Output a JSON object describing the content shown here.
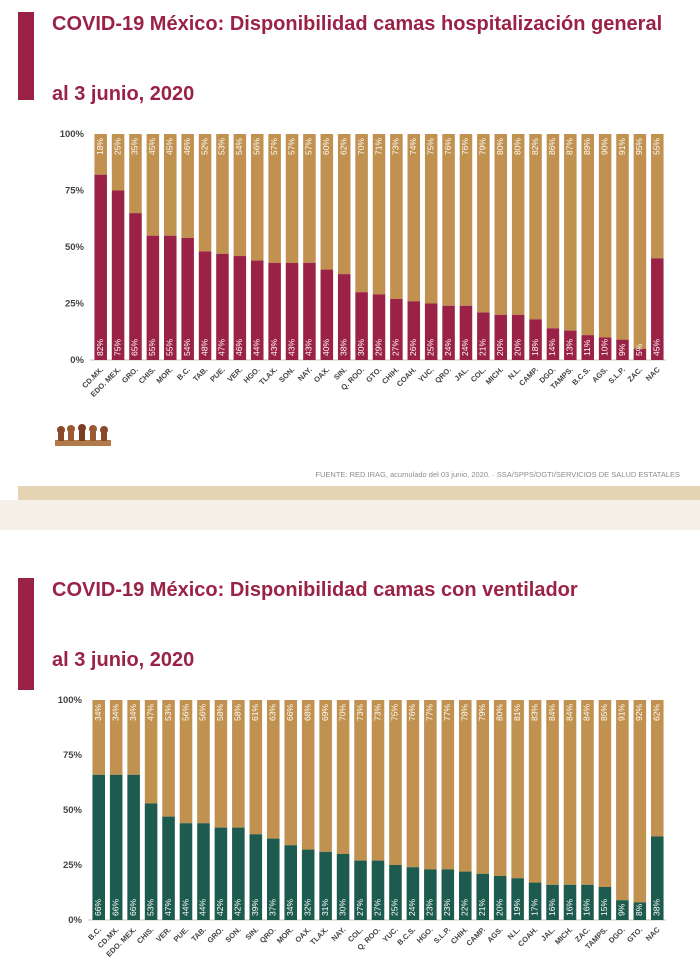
{
  "colors": {
    "accent": "#9b2247",
    "available": "#c0914f",
    "occupied_hosp": "#9b2247",
    "occupied_vent": "#1e5b4f",
    "source_text": "#8c8c8c"
  },
  "panel1": {
    "title": "COVID-19 México: Disponibilidad camas hospitalización general",
    "subtitle": "al 3 junio, 2020",
    "source": "FUENTE: RED IRAG, acumulado del 03 junio, 2020.  ·  SSA/SPPS/DGTI/SERVICIOS DE SALUD ESTATALES"
  },
  "panel2": {
    "title": "COVID-19 México: Disponibilidad camas con ventilador",
    "subtitle": "al 3 junio, 2020"
  },
  "chart_data": [
    {
      "type": "bar",
      "stacked": true,
      "ylim": [
        0,
        100
      ],
      "yticks": [
        "0%",
        "25%",
        "50%",
        "75%",
        "100%"
      ],
      "grid": false,
      "legend": "none",
      "categories": [
        "CD.MX.",
        "EDO. MEX.",
        "GRO.",
        "CHIS.",
        "MOR.",
        "B.C.",
        "TAB.",
        "PUE.",
        "VER.",
        "HGO.",
        "TLAX.",
        "SON.",
        "NAY.",
        "OAX.",
        "SIN.",
        "Q. ROO.",
        "GTO.",
        "CHIH.",
        "COAH.",
        "YUC.",
        "QRO.",
        "JAL.",
        "COL.",
        "MICH.",
        "N.L.",
        "CAMP.",
        "DGO.",
        "TAMPS.",
        "B.C.S.",
        "AGS.",
        "S.L.P.",
        "ZAC.",
        "NAC"
      ],
      "series": [
        {
          "values": [
            82,
            75,
            65,
            55,
            55,
            54,
            48,
            47,
            46,
            44,
            43,
            43,
            43,
            40,
            38,
            30,
            29,
            27,
            26,
            25,
            24,
            24,
            21,
            20,
            20,
            18,
            14,
            13,
            11,
            10,
            9,
            5,
            45
          ],
          "labels": [
            "82%",
            "75%",
            "65%",
            "55%",
            "55%",
            "54%",
            "48%",
            "47%",
            "46%",
            "44%",
            "43%",
            "43%",
            "43%",
            "40%",
            "38%",
            "30%",
            "29%",
            "27%",
            "26%",
            "25%",
            "24%",
            "24%",
            "21%",
            "20%",
            "20%",
            "18%",
            "14%",
            "13%",
            "11%",
            "10%",
            "9%",
            "5%",
            "45%"
          ]
        },
        {
          "values": [
            18,
            25,
            35,
            45,
            45,
            46,
            52,
            53,
            54,
            56,
            57,
            57,
            57,
            60,
            62,
            70,
            71,
            73,
            74,
            75,
            76,
            76,
            79,
            80,
            80,
            82,
            86,
            87,
            89,
            90,
            91,
            95,
            55
          ],
          "labels": [
            "18%",
            "25%",
            "35%",
            "45%",
            "45%",
            "46%",
            "52%",
            "53%",
            "54%",
            "56%",
            "57%",
            "57%",
            "57%",
            "60%",
            "62%",
            "70%",
            "71%",
            "73%",
            "74%",
            "75%",
            "76%",
            "76%",
            "79%",
            "80%",
            "80%",
            "82%",
            "86%",
            "87%",
            "89%",
            "90%",
            "91%",
            "95%",
            "55%"
          ]
        }
      ]
    },
    {
      "type": "bar",
      "stacked": true,
      "ylim": [
        0,
        100
      ],
      "yticks": [
        "0%",
        "25%",
        "50%",
        "75%",
        "100%"
      ],
      "grid": false,
      "legend": "none",
      "categories": [
        "B.C.",
        "CD.MX.",
        "EDO. MEX.",
        "CHIS.",
        "VER.",
        "PUE.",
        "TAB.",
        "GRO.",
        "SON.",
        "SIN.",
        "QRO.",
        "MOR.",
        "OAX.",
        "TLAX.",
        "NAY.",
        "COL.",
        "Q. ROO.",
        "YUC.",
        "B.C.S.",
        "HGO.",
        "S.L.P.",
        "CHIH.",
        "CAMP.",
        "AGS.",
        "N.L.",
        "COAH.",
        "JAL.",
        "MICH.",
        "ZAC.",
        "TAMPS.",
        "DGO.",
        "GTO.",
        "NAC"
      ],
      "series": [
        {
          "values": [
            66,
            66,
            66,
            53,
            47,
            44,
            44,
            42,
            42,
            39,
            37,
            34,
            32,
            31,
            30,
            27,
            27,
            25,
            24,
            23,
            23,
            22,
            21,
            20,
            19,
            17,
            16,
            16,
            16,
            15,
            9,
            8,
            38
          ],
          "labels": [
            "66%",
            "66%",
            "66%",
            "53%",
            "47%",
            "44%",
            "44%",
            "42%",
            "42%",
            "39%",
            "37%",
            "34%",
            "32%",
            "31%",
            "30%",
            "27%",
            "27%",
            "25%",
            "24%",
            "23%",
            "23%",
            "22%",
            "21%",
            "20%",
            "19%",
            "17%",
            "16%",
            "16%",
            "16%",
            "15%",
            "9%",
            "8%",
            "38%"
          ]
        },
        {
          "values": [
            34,
            34,
            34,
            47,
            53,
            56,
            56,
            58,
            58,
            61,
            63,
            66,
            68,
            69,
            70,
            73,
            73,
            75,
            76,
            77,
            77,
            78,
            79,
            80,
            81,
            83,
            84,
            84,
            84,
            85,
            91,
            92,
            62
          ],
          "labels": [
            "34%",
            "34%",
            "34%",
            "47%",
            "53%",
            "56%",
            "56%",
            "58%",
            "58%",
            "61%",
            "63%",
            "66%",
            "68%",
            "69%",
            "70%",
            "73%",
            "73%",
            "75%",
            "76%",
            "77%",
            "77%",
            "78%",
            "79%",
            "80%",
            "81%",
            "83%",
            "84%",
            "84%",
            "84%",
            "85%",
            "91%",
            "92%",
            "62%"
          ]
        }
      ]
    }
  ]
}
